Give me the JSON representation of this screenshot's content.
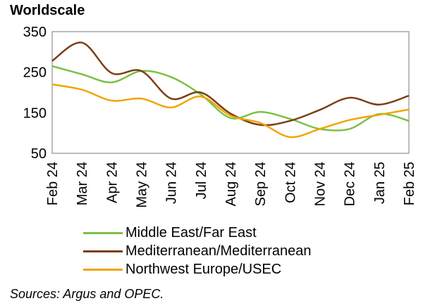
{
  "chart_data": {
    "type": "line",
    "title": "Worldscale",
    "categories": [
      "Feb 24",
      "Mar 24",
      "Apr 24",
      "May 24",
      "Jun 24",
      "Jul 24",
      "Aug 24",
      "Sep 24",
      "Oct 24",
      "Nov 24",
      "Dec 24",
      "Jan 25",
      "Feb 25"
    ],
    "ylim": [
      50,
      350
    ],
    "yticks": [
      50,
      150,
      250,
      350
    ],
    "grid": false,
    "legend_position": "bottom",
    "series": [
      {
        "name": "Middle East/Far East",
        "color": "#7ac143",
        "values": [
          265,
          245,
          225,
          253,
          238,
          195,
          137,
          152,
          135,
          110,
          110,
          147,
          130
        ]
      },
      {
        "name": "Mediterranean/Mediterranean",
        "color": "#7b3f14",
        "values": [
          278,
          323,
          248,
          253,
          185,
          200,
          148,
          120,
          130,
          157,
          187,
          170,
          192
        ]
      },
      {
        "name": "Northwest Europe/USEC",
        "color": "#f0a500",
        "values": [
          220,
          207,
          180,
          185,
          163,
          190,
          143,
          125,
          90,
          110,
          132,
          145,
          158
        ]
      }
    ]
  },
  "source_note": "Sources: Argus and OPEC."
}
